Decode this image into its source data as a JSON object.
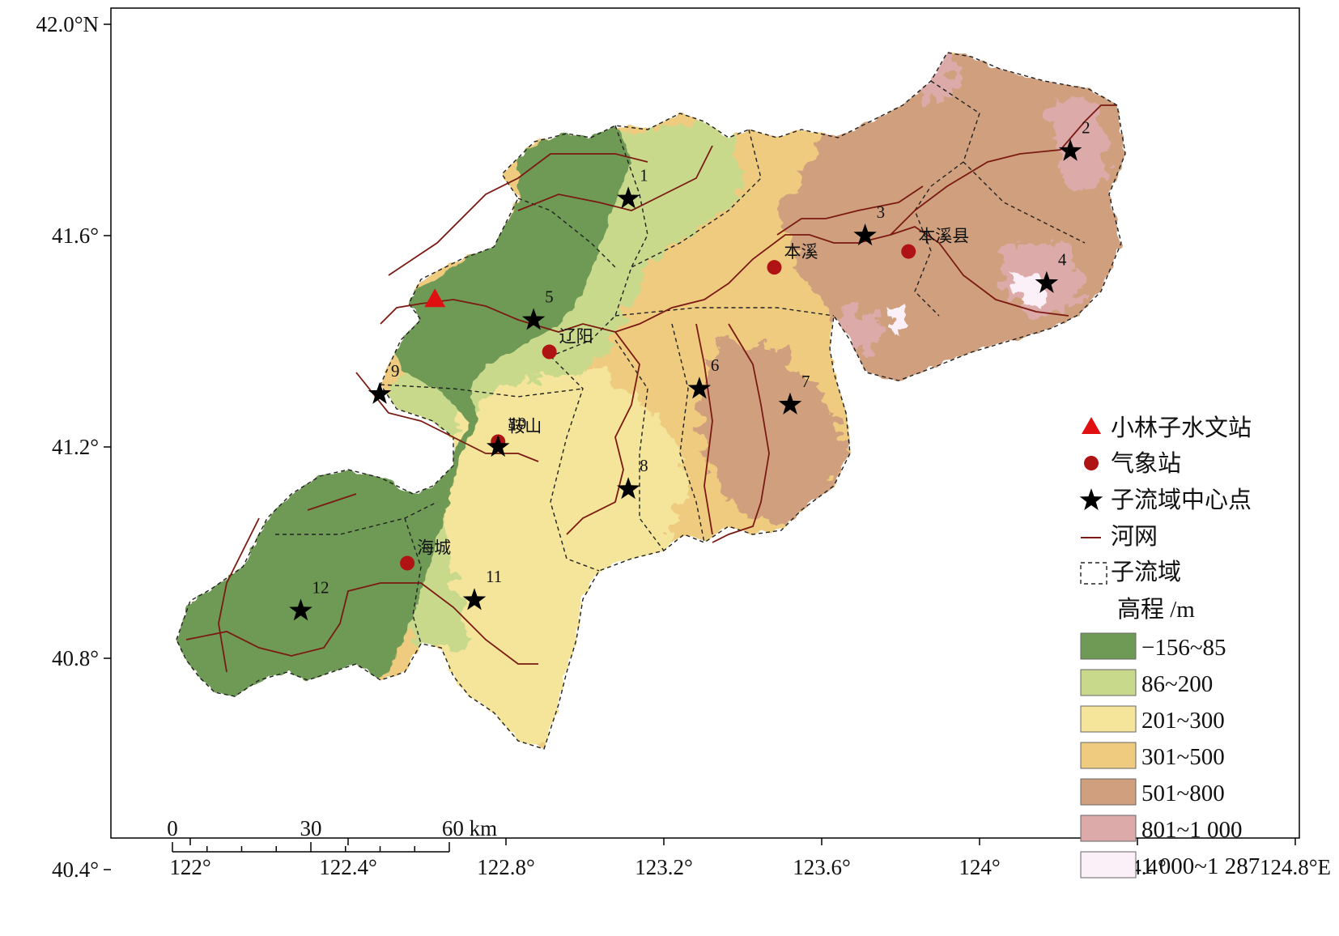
{
  "axes": {
    "x_ticks": [
      "122°",
      "122.4°",
      "122.8°",
      "123.2°",
      "123.6°",
      "124°",
      "124.4°",
      "124.8°E"
    ],
    "y_ticks": [
      "42.0°N",
      "41.6°",
      "41.2°",
      "40.8°",
      "40.4°"
    ]
  },
  "stations": {
    "hydro": {
      "name": "",
      "lon": 122.62,
      "lat": 41.48
    },
    "weather": [
      {
        "name": "本溪",
        "lon": 123.48,
        "lat": 41.54
      },
      {
        "name": "本溪县",
        "lon": 123.82,
        "lat": 41.57
      },
      {
        "name": "辽阳",
        "lon": 122.91,
        "lat": 41.38
      },
      {
        "name": "鞍山",
        "lon": 122.78,
        "lat": 41.21
      },
      {
        "name": "海城",
        "lon": 122.55,
        "lat": 40.98
      }
    ]
  },
  "subbasin_centers": [
    {
      "id": "1",
      "lon": 123.11,
      "lat": 41.67
    },
    {
      "id": "2",
      "lon": 124.23,
      "lat": 41.76
    },
    {
      "id": "3",
      "lon": 123.71,
      "lat": 41.6
    },
    {
      "id": "4",
      "lon": 124.17,
      "lat": 41.51
    },
    {
      "id": "5",
      "lon": 122.87,
      "lat": 41.44
    },
    {
      "id": "6",
      "lon": 123.29,
      "lat": 41.31
    },
    {
      "id": "7",
      "lon": 123.52,
      "lat": 41.28
    },
    {
      "id": "8",
      "lon": 123.11,
      "lat": 41.12
    },
    {
      "id": "9",
      "lon": 122.48,
      "lat": 41.3
    },
    {
      "id": "10",
      "lon": 122.78,
      "lat": 41.2
    },
    {
      "id": "11",
      "lon": 122.72,
      "lat": 40.91
    },
    {
      "id": "12",
      "lon": 122.28,
      "lat": 40.89
    }
  ],
  "legend": {
    "hydro_station": "小林子水文站",
    "weather_station": "气象站",
    "center_point": "子流域中心点",
    "river": "河网",
    "subbasin": "子流域",
    "elevation_title": "高程 /m",
    "classes": [
      {
        "label": "−156~85",
        "color": "#6e9a56"
      },
      {
        "label": "86~200",
        "color": "#c9d98c"
      },
      {
        "label": "201~300",
        "color": "#f4e59a"
      },
      {
        "label": "301~500",
        "color": "#eecb7f"
      },
      {
        "label": "501~800",
        "color": "#d0a07e"
      },
      {
        "label": "801~1 000",
        "color": "#dcaaa9"
      },
      {
        "label": "1 000~1 287",
        "color": "#fcf0f8"
      }
    ]
  },
  "scalebar": {
    "labels": [
      "0",
      "30",
      "60 km"
    ]
  },
  "colors": {
    "river": "#7a1a12",
    "weather_station": "#b01313",
    "hydro_station": "#e01010",
    "star": "#000000"
  }
}
